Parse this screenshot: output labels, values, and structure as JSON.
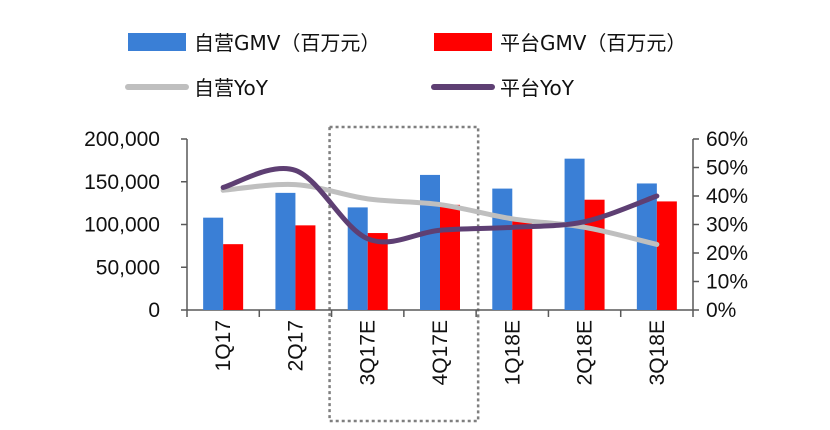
{
  "chart_data": {
    "type": "bar",
    "categories": [
      "1Q17",
      "2Q17",
      "3Q17E",
      "4Q17E",
      "1Q18E",
      "2Q18E",
      "3Q18E"
    ],
    "series": [
      {
        "name": "自营GMV（百万元）",
        "kind": "bar",
        "axis": "left",
        "color": "#3a7fd6",
        "values": [
          108000,
          137000,
          120000,
          158000,
          142000,
          177000,
          148000
        ]
      },
      {
        "name": "平台GMV（百万元）",
        "kind": "bar",
        "axis": "left",
        "color": "#ff0000",
        "values": [
          77000,
          99000,
          90000,
          123000,
          106000,
          129000,
          127000
        ]
      },
      {
        "name": "自营YoY",
        "kind": "line",
        "axis": "right",
        "color": "#bfbfbf",
        "values": [
          0.42,
          0.44,
          0.39,
          0.37,
          0.32,
          0.29,
          0.23
        ]
      },
      {
        "name": "平台YoY",
        "kind": "line",
        "axis": "right",
        "color": "#5e3f73",
        "values": [
          0.43,
          0.49,
          0.25,
          0.28,
          0.29,
          0.31,
          0.4
        ]
      }
    ],
    "left_axis": {
      "min": 0,
      "max": 200000,
      "ticks": [
        "0",
        "50,000",
        "100,000",
        "150,000",
        "200,000"
      ]
    },
    "right_axis": {
      "min": 0,
      "max": 0.6,
      "ticks": [
        "0%",
        "10%",
        "20%",
        "30%",
        "40%",
        "50%",
        "60%"
      ]
    },
    "highlight_categories": [
      "3Q17E",
      "4Q17E"
    ],
    "legend_position": "top"
  }
}
